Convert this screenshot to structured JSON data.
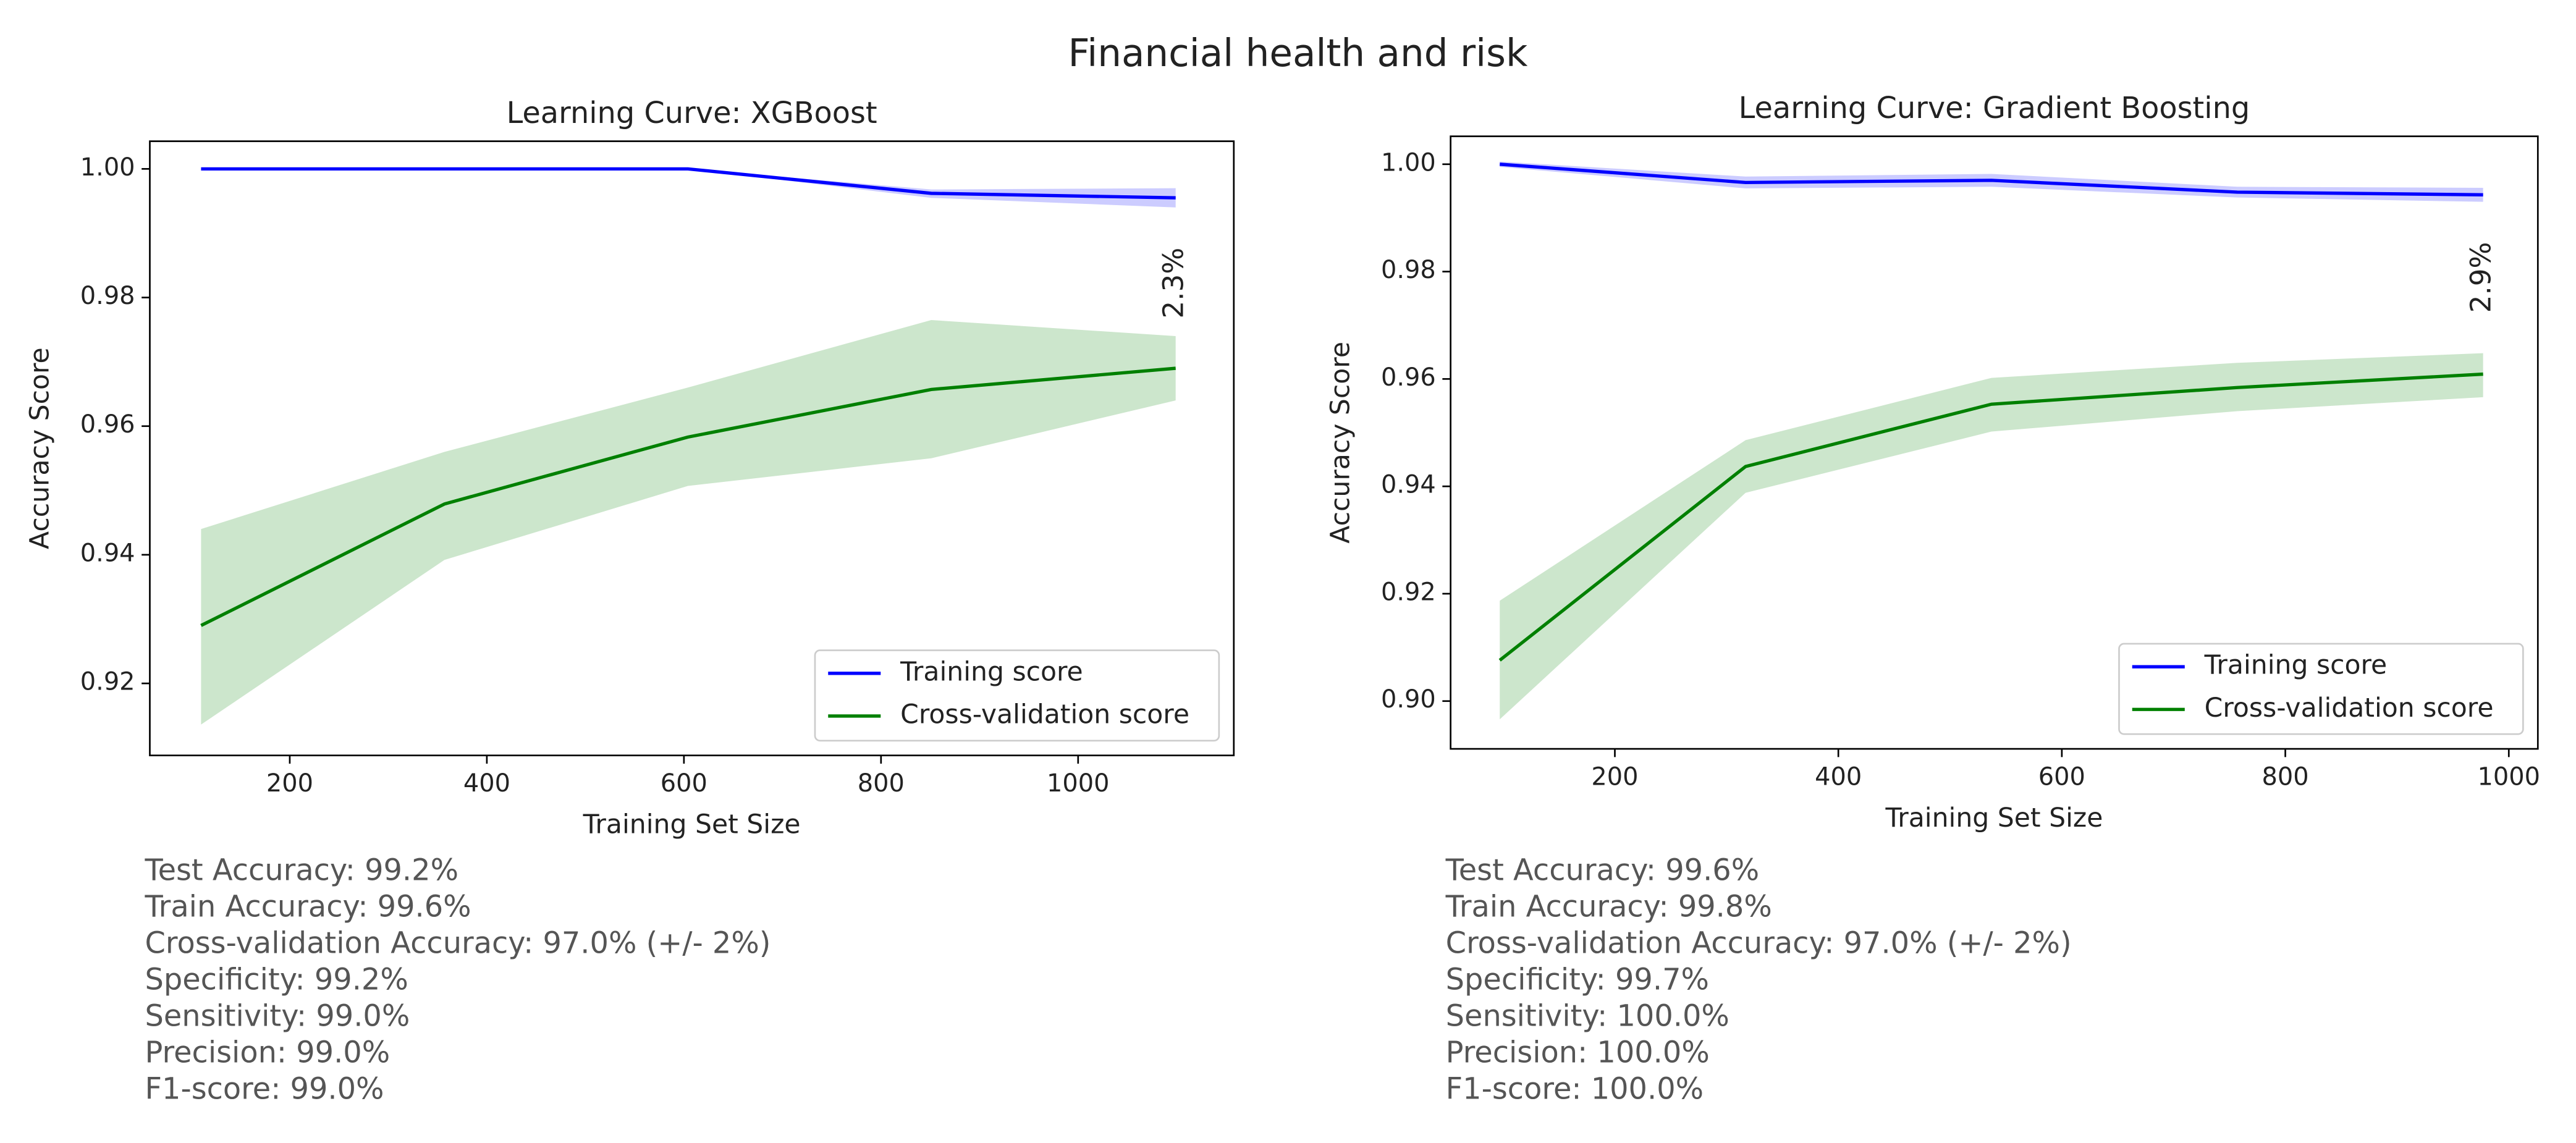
{
  "title": "Financial health and risk",
  "chart_data": [
    {
      "type": "line",
      "title": "Learning Curve: XGBoost",
      "x_label": "Training Set Size",
      "y_label": "Accuracy Score",
      "x": [
        110,
        357,
        604,
        851,
        1099
      ],
      "series": [
        {
          "name": "Training score",
          "color": "#0000ff",
          "values": [
            1.0,
            1.0,
            1.0,
            0.9962,
            0.9955
          ],
          "lower": [
            1.0,
            1.0,
            1.0,
            0.9955,
            0.994
          ],
          "upper": [
            1.0,
            1.0,
            1.0,
            0.9968,
            0.997
          ]
        },
        {
          "name": "Cross-validation score",
          "color": "#008000",
          "values": [
            0.929,
            0.9479,
            0.9583,
            0.9657,
            0.969
          ],
          "lower": [
            0.9136,
            0.9392,
            0.9507,
            0.955,
            0.964
          ],
          "upper": [
            0.944,
            0.956,
            0.966,
            0.9765,
            0.974
          ]
        }
      ],
      "xlim": [
        58,
        1158
      ],
      "ylim": [
        0.9088,
        1.0043
      ],
      "xticks": [
        200,
        400,
        600,
        800,
        1000
      ],
      "yticks": [
        0.92,
        0.94,
        0.96,
        0.98,
        {
          "value": 1,
          "label": "1.00"
        }
      ],
      "legend": "lower right",
      "annotation": "2.3%",
      "metrics": [
        "Test Accuracy: 99.2%",
        "Train Accuracy: 99.6%",
        "Cross-validation Accuracy: 97.0% (+/- 2%)",
        "Specificity: 99.2%",
        "Sensitivity: 99.0%",
        "Precision: 99.0%",
        "F1-score: 99.0%"
      ]
    },
    {
      "type": "line",
      "title": "Learning Curve: Gradient Boosting",
      "x_label": "Training Set Size",
      "y_label": "Accuracy Score",
      "x": [
        97,
        317,
        537,
        757,
        977
      ],
      "series": [
        {
          "name": "Training score",
          "color": "#0000ff",
          "values": [
            1.0,
            0.9966,
            0.997,
            0.9948,
            0.9943
          ],
          "lower": [
            0.9995,
            0.9955,
            0.9958,
            0.9938,
            0.993
          ],
          "upper": [
            1.0005,
            0.9977,
            0.9982,
            0.9958,
            0.9956
          ]
        },
        {
          "name": "Cross-validation score",
          "color": "#008000",
          "values": [
            0.9076,
            0.9437,
            0.9553,
            0.9584,
            0.9609
          ],
          "lower": [
            0.8966,
            0.9388,
            0.9502,
            0.954,
            0.9566
          ],
          "upper": [
            0.9187,
            0.9486,
            0.9602,
            0.963,
            0.9648
          ]
        }
      ],
      "xlim": [
        53,
        1026
      ],
      "ylim": [
        0.8911,
        1.0052
      ],
      "xticks": [
        200,
        400,
        600,
        800,
        1000
      ],
      "yticks": [
        {
          "value": 0.9,
          "label": "0.90"
        },
        0.92,
        0.94,
        0.96,
        0.98,
        {
          "value": 1,
          "label": "1.00"
        }
      ],
      "legend": "lower right",
      "annotation": "2.9%",
      "metrics": [
        "Test Accuracy: 99.6%",
        "Train Accuracy: 99.8%",
        "Cross-validation Accuracy: 97.0% (+/- 2%)",
        "Specificity: 99.7%",
        "Sensitivity: 100.0%",
        "Precision: 100.0%",
        "F1-score: 100.0%"
      ]
    }
  ]
}
